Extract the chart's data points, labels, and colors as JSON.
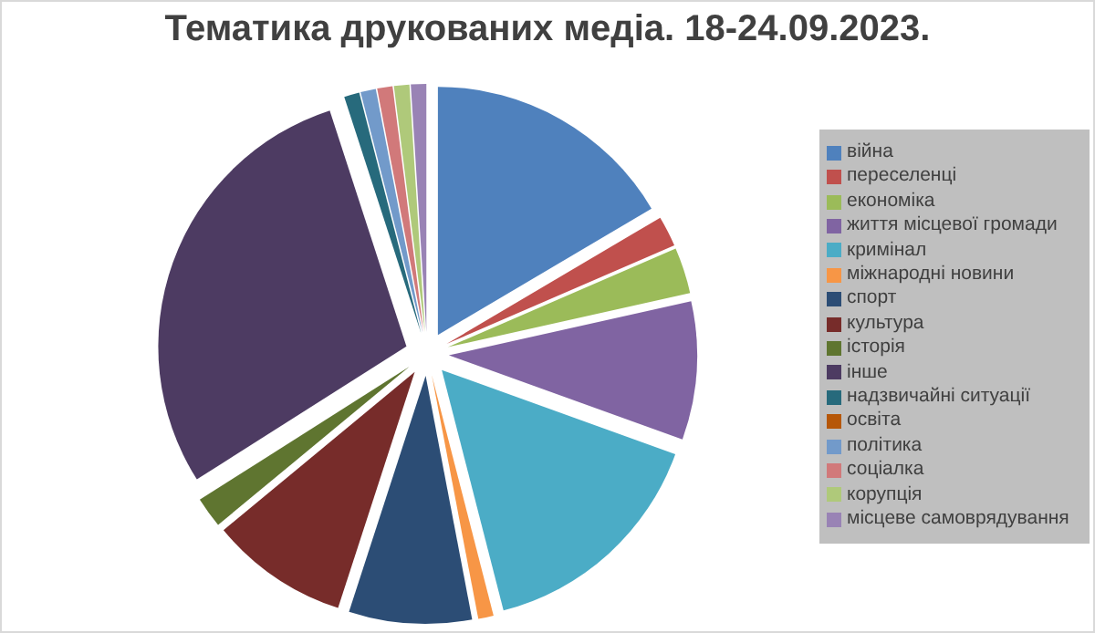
{
  "chart_data": {
    "type": "pie",
    "title": "Тематика друкованих медіа. 18-24.09.2023.",
    "categories": [
      "війна",
      "переселенці",
      "економіка",
      "життя місцевої громади",
      "кримінал",
      "міжнародні новини",
      "спорт",
      "культура",
      "історія",
      "інше",
      "надзвичайні ситуації",
      "освіта",
      "політика",
      "соціалка",
      "корупція",
      "місцеве самоврядування"
    ],
    "values": [
      16.5,
      2,
      3,
      9,
      15.5,
      1,
      8,
      9,
      2,
      29,
      1,
      0,
      1,
      1,
      1,
      1
    ],
    "colors": [
      "#4f81bd",
      "#c0504d",
      "#9bbb59",
      "#8064a2",
      "#4bacc6",
      "#f79646",
      "#2c4d75",
      "#772c2a",
      "#5f7530",
      "#4d3b62",
      "#276a7c",
      "#b65708",
      "#729aca",
      "#d1797a",
      "#afc97a",
      "#9983b5"
    ],
    "legend": "right"
  }
}
